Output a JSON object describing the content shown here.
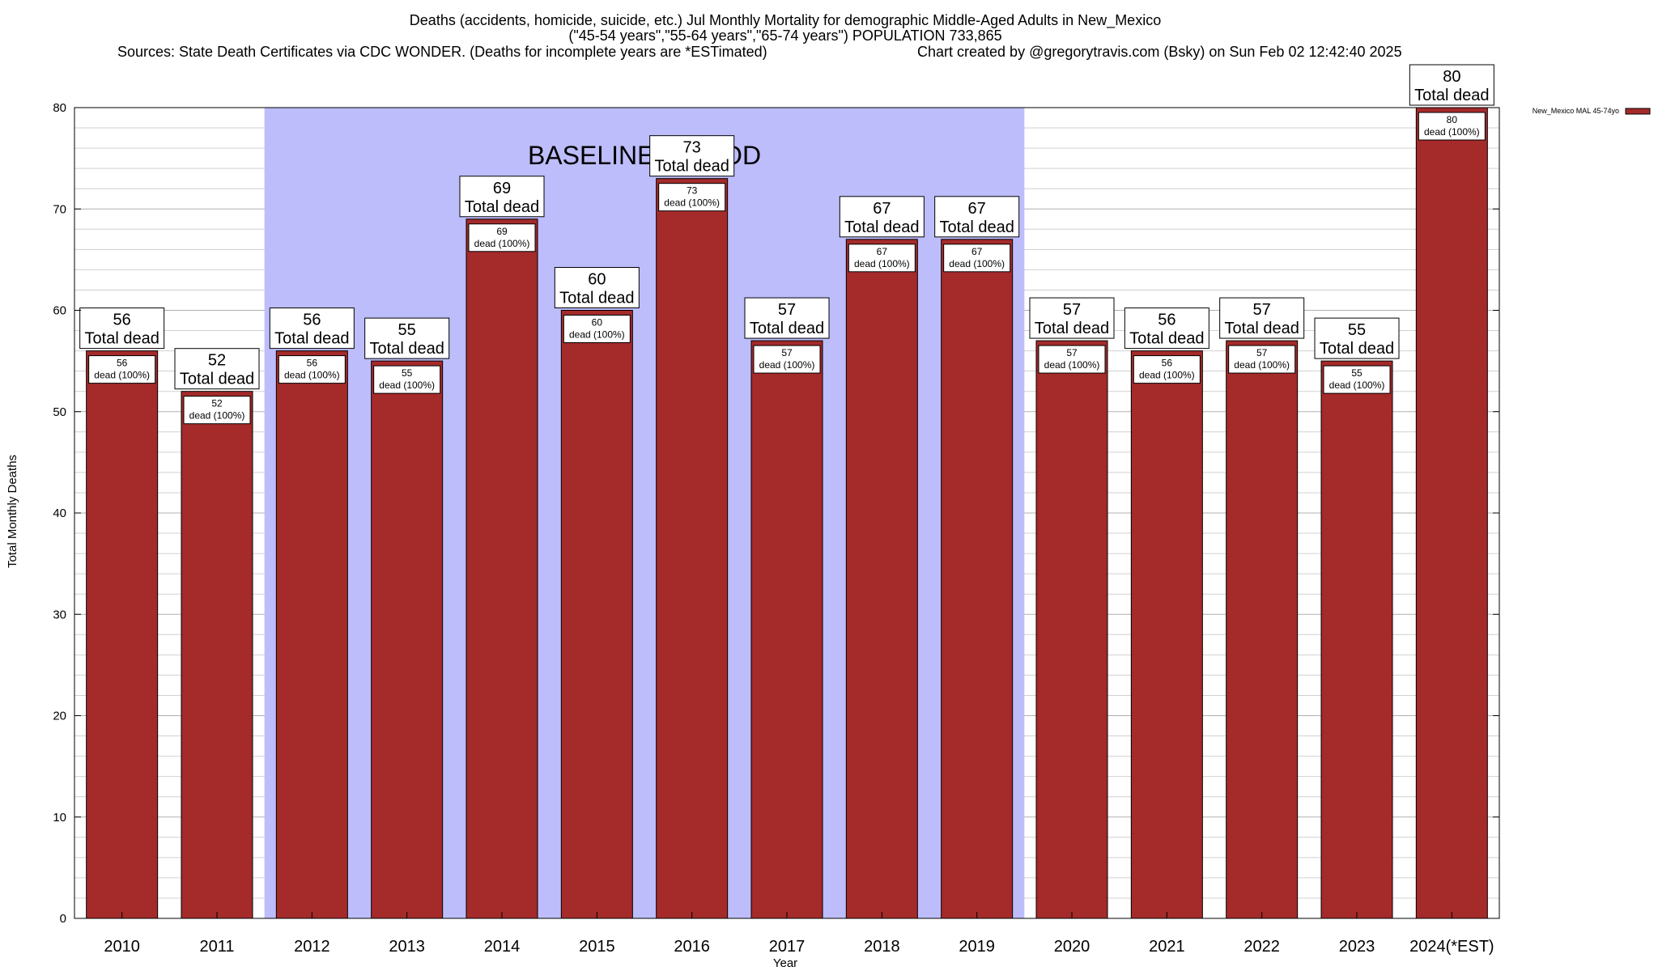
{
  "title": {
    "line1": "Deaths (accidents, homicide, suicide, etc.) Jul Monthly Mortality for demographic Middle-Aged Adults in New_Mexico",
    "line2": "(\"45-54 years\",\"55-64 years\",\"65-74 years\") POPULATION 733,865",
    "line3_left": "Sources: State Death Certificates via CDC WONDER. (Deaths for incomplete years are *ESTimated)",
    "line3_right": "Chart created by @gregorytravis.com (Bsky) on Sun Feb 02 12:42:40 2025"
  },
  "colors": {
    "bar": "#a52a2a",
    "baseline_band": "#bdbdfb",
    "grid": "#d0d0d0"
  },
  "chart_data": {
    "type": "bar",
    "categories": [
      "2010",
      "2011",
      "2012",
      "2013",
      "2014",
      "2015",
      "2016",
      "2017",
      "2018",
      "2019",
      "2020",
      "2021",
      "2022",
      "2023",
      "2024(*EST)"
    ],
    "series": [
      {
        "name": "New_Mexico MAL 45-74yo",
        "values": [
          56,
          52,
          56,
          55,
          69,
          60,
          73,
          57,
          67,
          67,
          57,
          56,
          57,
          55,
          80
        ]
      }
    ],
    "big_label_suffix": "Total dead",
    "small_label_suffix": "dead (100%)",
    "xlabel": "Year",
    "ylabel": "Total Monthly Deaths",
    "ylim": [
      0,
      80
    ],
    "yticks": [
      0,
      10,
      20,
      30,
      40,
      50,
      60,
      70,
      80
    ],
    "grid": true,
    "legend_position": "top-right",
    "baseline": {
      "label": "BASELINE PERIOD",
      "start_category": "2012",
      "end_category": "2019"
    }
  }
}
